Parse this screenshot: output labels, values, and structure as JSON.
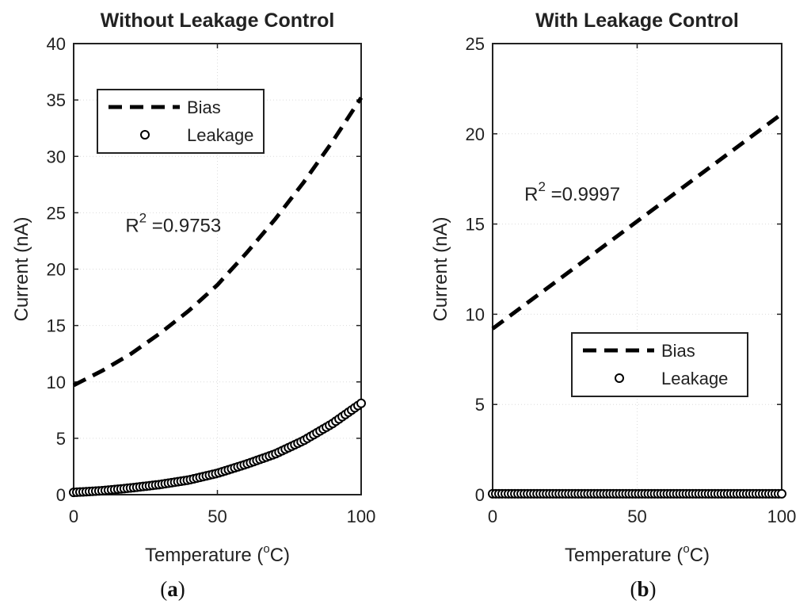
{
  "chart_data": [
    {
      "type": "line",
      "title": "Without Leakage Control",
      "xlabel": "Temperature (",
      "xlabel_sup": "o",
      "xlabel_tail": "C)",
      "ylabel": "Current (nA)",
      "xlim": [
        0,
        100
      ],
      "ylim": [
        0,
        40
      ],
      "xticks": [
        "0",
        "50",
        "100"
      ],
      "xtick_values": [
        0,
        50,
        100
      ],
      "yticks": [
        "0",
        "5",
        "10",
        "15",
        "20",
        "25",
        "30",
        "35",
        "40"
      ],
      "ytick_values": [
        0,
        5,
        10,
        15,
        20,
        25,
        30,
        35,
        40
      ],
      "grid": true,
      "legend": {
        "position": "top-left",
        "entries": [
          "Bias",
          "Leakage"
        ]
      },
      "annotation": {
        "prefix": "R",
        "sup": "2",
        "text": " =0.9753",
        "x": 18,
        "y": 23.3
      },
      "series": [
        {
          "name": "Bias",
          "style": "dashed",
          "x": [
            0,
            10,
            20,
            30,
            40,
            50,
            60,
            70,
            80,
            90,
            100
          ],
          "y": [
            9.7,
            11.0,
            12.5,
            14.3,
            16.3,
            18.6,
            21.4,
            24.4,
            27.7,
            31.3,
            35.2
          ]
        },
        {
          "name": "Leakage",
          "style": "circle",
          "x": [
            0,
            10,
            20,
            30,
            40,
            50,
            60,
            70,
            80,
            90,
            100
          ],
          "y": [
            0.2,
            0.35,
            0.6,
            0.9,
            1.3,
            1.9,
            2.7,
            3.6,
            4.8,
            6.3,
            8.1
          ]
        }
      ],
      "caption": {
        "open": "(",
        "letter": "a",
        "close": ")"
      }
    },
    {
      "type": "line",
      "title": "With Leakage Control",
      "xlabel": "Temperature (",
      "xlabel_sup": "o",
      "xlabel_tail": "C)",
      "ylabel": "Current (nA)",
      "xlim": [
        0,
        100
      ],
      "ylim": [
        0,
        25
      ],
      "xticks": [
        "0",
        "50",
        "100"
      ],
      "xtick_values": [
        0,
        50,
        100
      ],
      "yticks": [
        "0",
        "5",
        "10",
        "15",
        "20",
        "25"
      ],
      "ytick_values": [
        0,
        5,
        10,
        15,
        20,
        25
      ],
      "grid": true,
      "legend": {
        "position": "bottom-right",
        "entries": [
          "Bias",
          "Leakage"
        ]
      },
      "annotation": {
        "prefix": "R",
        "sup": "2",
        "text": " =0.9997",
        "x": 11,
        "y": 16.3
      },
      "series": [
        {
          "name": "Bias",
          "style": "dashed",
          "x": [
            0,
            100
          ],
          "y": [
            9.2,
            21.1
          ]
        },
        {
          "name": "Leakage",
          "style": "circle",
          "x": [
            0,
            100
          ],
          "y": [
            0.05,
            0.05
          ]
        }
      ],
      "caption": {
        "open": "(",
        "letter": "b",
        "close": ")"
      }
    }
  ]
}
